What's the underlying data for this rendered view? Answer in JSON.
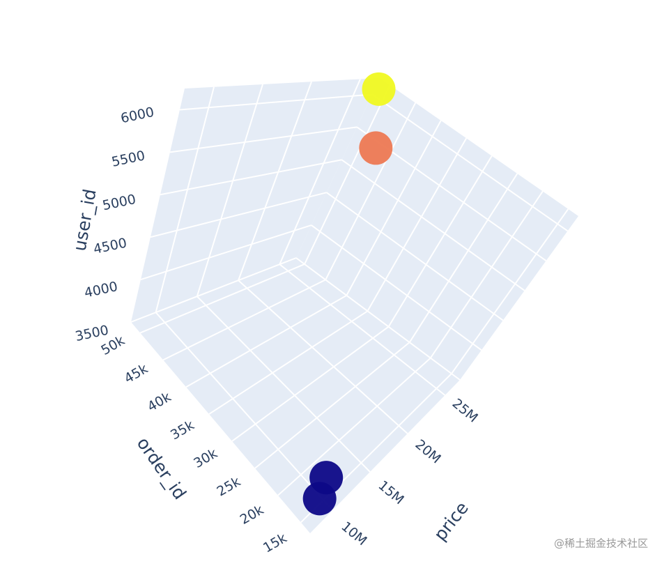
{
  "chart_data": {
    "type": "scatter3d",
    "x_label": "price",
    "y_label": "order_id",
    "z_label": "user_id",
    "x": [
      26000000,
      25000000,
      10000000,
      9000000
    ],
    "y": [
      50000,
      45000,
      16000,
      15000
    ],
    "z": [
      6200,
      5600,
      3700,
      3600
    ],
    "colors": [
      "#f0f921",
      "#ed7953",
      "#0d0887",
      "#0d0887"
    ],
    "xlim": [
      7000000,
      27000000
    ],
    "xticks": [
      {
        "value": 10000000,
        "label": "10M"
      },
      {
        "value": 15000000,
        "label": "15M"
      },
      {
        "value": 20000000,
        "label": "20M"
      },
      {
        "value": 25000000,
        "label": "25M"
      }
    ],
    "ylim": [
      13000,
      52000
    ],
    "yticks": [
      {
        "value": 15000,
        "label": "15k"
      },
      {
        "value": 20000,
        "label": "20k"
      },
      {
        "value": 25000,
        "label": "25k"
      },
      {
        "value": 30000,
        "label": "30k"
      },
      {
        "value": 35000,
        "label": "35k"
      },
      {
        "value": 40000,
        "label": "40k"
      },
      {
        "value": 45000,
        "label": "45k"
      },
      {
        "value": 50000,
        "label": "50k"
      }
    ],
    "zlim": [
      3500,
      6250
    ],
    "zticks": [
      3500,
      4000,
      4500,
      5000,
      5500,
      6000
    ],
    "grid": true,
    "watermark": "@稀土掘金技术社区"
  }
}
